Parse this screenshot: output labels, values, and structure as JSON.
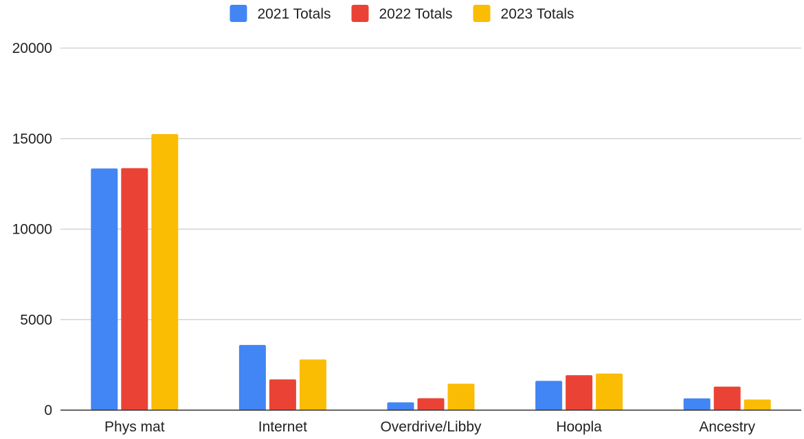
{
  "chart_data": {
    "type": "bar",
    "title": "",
    "xlabel": "",
    "ylabel": "",
    "categories": [
      "Phys mat",
      "Internet",
      "Overdrive/Libby",
      "Hoopla",
      "Ancestry"
    ],
    "series": [
      {
        "name": "2021 Totals",
        "color": "#4285f4",
        "values": [
          13350,
          3600,
          430,
          1620,
          650
        ]
      },
      {
        "name": "2022 Totals",
        "color": "#ea4335",
        "values": [
          13370,
          1700,
          660,
          1930,
          1300
        ]
      },
      {
        "name": "2023 Totals",
        "color": "#fbbc04",
        "values": [
          15250,
          2800,
          1460,
          2020,
          590
        ]
      }
    ],
    "ylim": [
      0,
      20000
    ],
    "yticks": [
      "0",
      "5000",
      "10000",
      "15000",
      "20000"
    ],
    "grid": true,
    "legend": "top-center"
  }
}
